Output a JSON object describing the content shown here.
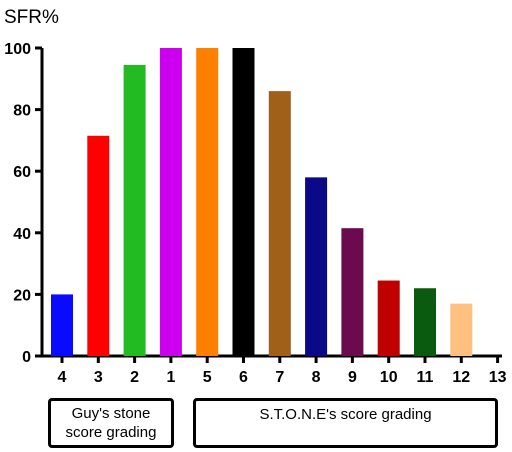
{
  "chart_data": {
    "type": "bar",
    "ylabel": "SFR%",
    "ylim": [
      0,
      100
    ],
    "yticks": [
      0,
      20,
      40,
      60,
      80,
      100
    ],
    "categories": [
      "4",
      "3",
      "2",
      "1",
      "5",
      "6",
      "7",
      "8",
      "9",
      "10",
      "11",
      "12",
      "13"
    ],
    "values": [
      20,
      71.5,
      94.5,
      100,
      100,
      100,
      86,
      58,
      41.5,
      24.5,
      22,
      17,
      0
    ],
    "colors": [
      "#0a0aff",
      "#ff0000",
      "#22bb22",
      "#cc00ee",
      "#ff8000",
      "#000000",
      "#a0601a",
      "#0a0a88",
      "#6b0a4f",
      "#c00000",
      "#0a5a10",
      "#ffc080",
      "#ffffff"
    ],
    "grid": false,
    "groups": [
      {
        "label": "Guy's stone\nscore grading",
        "categories": [
          "4",
          "3",
          "2",
          "1"
        ]
      },
      {
        "label": "S.T.O.N.E's score grading",
        "categories": [
          "5",
          "6",
          "7",
          "8",
          "9",
          "10",
          "11",
          "12",
          "13"
        ]
      }
    ]
  }
}
